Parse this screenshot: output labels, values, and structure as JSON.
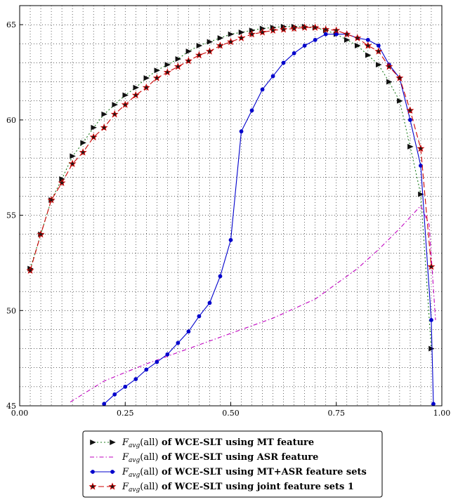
{
  "chart_data": {
    "type": "line",
    "title": "",
    "xlabel": "",
    "ylabel": "",
    "xlim": [
      0.0,
      1.0
    ],
    "ylim": [
      45,
      66
    ],
    "grid": true,
    "legend_position": "bottom-center",
    "x_ticks": [
      "0.00",
      "0.25",
      "0.50",
      "0.75",
      "1.00"
    ],
    "y_ticks": [
      "45",
      "50",
      "55",
      "60",
      "65"
    ],
    "series": [
      {
        "name": "F_avg(all) of WCE-SLT using MT feature",
        "legend_prefix": "F",
        "legend_sub": "avg",
        "legend_arg": "(all)",
        "legend_suffix": " of WCE-SLT using MT feature",
        "color": "#1a7a1a",
        "marker": "triangle-right",
        "dash": "2,3",
        "x": [
          0.025,
          0.05,
          0.075,
          0.1,
          0.125,
          0.15,
          0.175,
          0.2,
          0.225,
          0.25,
          0.275,
          0.3,
          0.325,
          0.35,
          0.375,
          0.4,
          0.425,
          0.45,
          0.475,
          0.5,
          0.525,
          0.55,
          0.575,
          0.6,
          0.625,
          0.65,
          0.675,
          0.7,
          0.725,
          0.75,
          0.775,
          0.8,
          0.825,
          0.85,
          0.875,
          0.9,
          0.925,
          0.95,
          0.975
        ],
        "y": [
          52.2,
          54.0,
          55.8,
          56.9,
          58.1,
          58.8,
          59.6,
          60.3,
          60.8,
          61.3,
          61.7,
          62.2,
          62.6,
          62.9,
          63.2,
          63.6,
          63.9,
          64.1,
          64.3,
          64.5,
          64.6,
          64.7,
          64.8,
          64.85,
          64.9,
          64.9,
          64.9,
          64.85,
          64.7,
          64.5,
          64.2,
          63.9,
          63.4,
          62.9,
          62.0,
          61.0,
          58.6,
          56.1,
          48.0
        ]
      },
      {
        "name": "F_avg(all) of WCE-SLT using ASR feature",
        "legend_prefix": "F",
        "legend_sub": "avg",
        "legend_arg": "(all)",
        "legend_suffix": " of WCE-SLT using ASR feature",
        "color": "#bf00bf",
        "marker": "none",
        "dash": "6,3,1.5,3",
        "x": [
          0.12,
          0.2,
          0.3,
          0.4,
          0.5,
          0.6,
          0.7,
          0.8,
          0.85,
          0.9,
          0.95,
          0.97,
          0.985
        ],
        "y": [
          45.2,
          46.3,
          47.2,
          48.0,
          48.8,
          49.6,
          50.6,
          52.2,
          53.2,
          54.3,
          55.5,
          54.5,
          49.5
        ]
      },
      {
        "name": "F_avg(all) of WCE-SLT using MT+ASR feature sets",
        "legend_prefix": "F",
        "legend_sub": "avg",
        "legend_arg": "(all)",
        "legend_suffix": " of WCE-SLT using MT+ASR feature sets",
        "color": "#0000cc",
        "marker": "circle",
        "dash": "",
        "x": [
          0.2,
          0.225,
          0.25,
          0.275,
          0.3,
          0.325,
          0.35,
          0.375,
          0.4,
          0.425,
          0.45,
          0.475,
          0.5,
          0.525,
          0.55,
          0.575,
          0.6,
          0.625,
          0.65,
          0.675,
          0.7,
          0.725,
          0.75,
          0.775,
          0.8,
          0.825,
          0.85,
          0.875,
          0.9,
          0.925,
          0.95,
          0.975,
          0.98
        ],
        "y": [
          45.1,
          45.6,
          46.0,
          46.4,
          46.9,
          47.3,
          47.7,
          48.3,
          48.9,
          49.7,
          50.4,
          51.8,
          53.7,
          59.4,
          60.5,
          61.6,
          62.3,
          63.0,
          63.5,
          63.9,
          64.2,
          64.5,
          64.5,
          64.5,
          64.3,
          64.2,
          63.9,
          62.9,
          62.2,
          60.0,
          57.6,
          49.5,
          45.1
        ]
      },
      {
        "name": "F_avg(all) of WCE-SLT using joint feature sets 1",
        "legend_prefix": "F",
        "legend_sub": "avg",
        "legend_arg": "(all)",
        "legend_suffix": " of WCE-SLT using joint feature sets 1",
        "color": "#cc0000",
        "marker": "star",
        "dash": "8,4",
        "x": [
          0.025,
          0.05,
          0.075,
          0.1,
          0.125,
          0.15,
          0.175,
          0.2,
          0.225,
          0.25,
          0.275,
          0.3,
          0.325,
          0.35,
          0.375,
          0.4,
          0.425,
          0.45,
          0.475,
          0.5,
          0.525,
          0.55,
          0.575,
          0.6,
          0.625,
          0.65,
          0.675,
          0.7,
          0.725,
          0.75,
          0.775,
          0.8,
          0.825,
          0.85,
          0.875,
          0.9,
          0.925,
          0.95,
          0.975
        ],
        "y": [
          52.1,
          54.0,
          55.8,
          56.7,
          57.7,
          58.3,
          59.1,
          59.6,
          60.3,
          60.8,
          61.3,
          61.7,
          62.2,
          62.5,
          62.8,
          63.1,
          63.4,
          63.6,
          63.9,
          64.1,
          64.3,
          64.5,
          64.6,
          64.7,
          64.75,
          64.8,
          64.85,
          64.85,
          64.75,
          64.7,
          64.5,
          64.3,
          63.9,
          63.6,
          62.8,
          62.2,
          60.5,
          58.5,
          52.3
        ]
      }
    ]
  }
}
